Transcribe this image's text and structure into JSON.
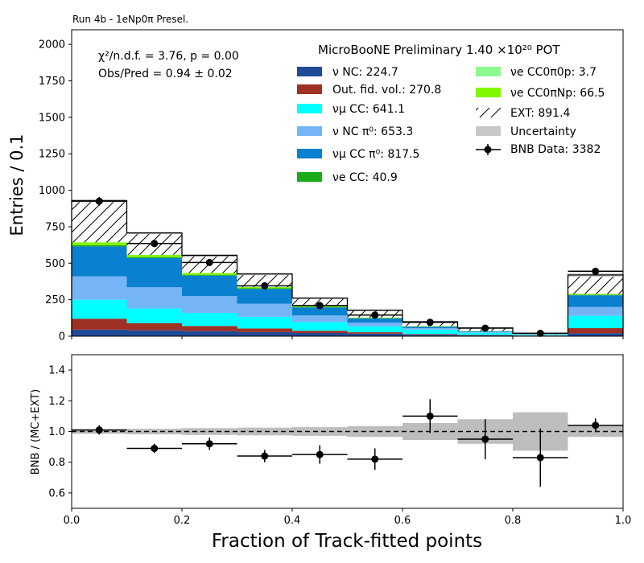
{
  "chart_data": [
    {
      "type": "bar",
      "run_label": "Run 4b - 1eNp0π Presel.",
      "header": "MicroBooNE Preliminary 1.40 ×10²⁰ POT",
      "stats": [
        "χ²/n.d.f. = 3.76, p = 0.00",
        "Obs/Pred = 0.94 ± 0.02"
      ],
      "xlabel": "Fraction of Track-fitted points",
      "ylabel": "Entries / 0.1",
      "xlim": [
        0,
        1
      ],
      "ylim": [
        0,
        2100
      ],
      "y_ticks": [
        "0",
        "250",
        "500",
        "750",
        "1000",
        "1250",
        "1500",
        "1750",
        "2000"
      ],
      "x_bin_edges": [
        0,
        0.1,
        0.2,
        0.3,
        0.4,
        0.5,
        0.6,
        0.7,
        0.8,
        0.9,
        1.0
      ],
      "stacked": true,
      "series": [
        {
          "name": "ν NC: 224.7",
          "color": "#1f4a96",
          "hatch": false,
          "values": [
            45,
            40,
            35,
            28,
            22,
            17,
            10,
            6,
            3,
            20
          ]
        },
        {
          "name": "Out. fid. vol.: 270.8",
          "color": "#9e3024",
          "hatch": false,
          "values": [
            75,
            50,
            35,
            25,
            15,
            10,
            5,
            3,
            2,
            35
          ]
        },
        {
          "name": "νμ CC: 641.1",
          "color": "#00ffff",
          "hatch": false,
          "values": [
            130,
            100,
            90,
            80,
            60,
            40,
            30,
            15,
            5,
            85
          ]
        },
        {
          "name": "ν NC π⁰: 653.3",
          "color": "#76b5f5",
          "hatch": false,
          "values": [
            160,
            145,
            115,
            90,
            45,
            25,
            10,
            5,
            2,
            60
          ]
        },
        {
          "name": "νμ CC π⁰: 817.5",
          "color": "#0a80d1",
          "hatch": false,
          "values": [
            205,
            200,
            140,
            100,
            55,
            30,
            10,
            5,
            2,
            80
          ]
        },
        {
          "name": "νe CC: 40.9",
          "color": "#1aab1a",
          "hatch": false,
          "values": [
            8,
            7,
            6,
            5,
            4,
            3,
            2,
            1,
            0.5,
            4
          ]
        },
        {
          "name": "νe CC0π0p: 3.7",
          "color": "#90f890",
          "hatch": false,
          "values": [
            0.5,
            0.5,
            0.5,
            0.3,
            0.3,
            0.2,
            0.2,
            0.2,
            0.1,
            0.5
          ]
        },
        {
          "name": "νe CC0πNp: 66.5",
          "color": "#7ffa00",
          "hatch": false,
          "values": [
            20,
            15,
            12,
            8,
            5,
            3,
            2,
            1,
            0.5,
            5
          ]
        },
        {
          "name": "EXT: 891.4",
          "color": "#ffffff",
          "hatch": true,
          "values": [
            285,
            150,
            120,
            90,
            55,
            50,
            30,
            20,
            5,
            130
          ]
        }
      ],
      "uncertainty": {
        "name": "Uncertainty",
        "color": "#c8c8c8",
        "values": [
          10,
          8,
          8,
          8,
          6,
          5,
          4,
          3,
          2,
          12
        ]
      },
      "data": {
        "name": "BNB Data: 3382",
        "x": [
          0.05,
          0.15,
          0.25,
          0.35,
          0.45,
          0.55,
          0.65,
          0.75,
          0.85,
          0.95
        ],
        "y": [
          925,
          635,
          505,
          345,
          210,
          145,
          95,
          55,
          20,
          445
        ],
        "yerr": [
          30,
          25,
          22,
          19,
          14,
          12,
          10,
          7,
          4,
          21
        ]
      }
    },
    {
      "type": "scatter",
      "ylabel": "BNB / (MC+EXT)",
      "xlabel": "Fraction of Track-fitted points",
      "xlim": [
        0,
        1
      ],
      "ylim": [
        0.5,
        1.5
      ],
      "x_ticks": [
        "0.0",
        "0.2",
        "0.4",
        "0.6",
        "0.8",
        "1.0"
      ],
      "y_ticks": [
        "0.6",
        "0.8",
        "1.0",
        "1.2",
        "1.4"
      ],
      "reference_line": 1.0,
      "uncertainty_band": {
        "lo": [
          0.985,
          0.982,
          0.978,
          0.975,
          0.972,
          0.965,
          0.945,
          0.92,
          0.875,
          0.965
        ],
        "hi": [
          1.015,
          1.018,
          1.022,
          1.025,
          1.028,
          1.035,
          1.055,
          1.08,
          1.125,
          1.035
        ]
      },
      "ratio": {
        "x": [
          0.05,
          0.15,
          0.25,
          0.35,
          0.45,
          0.55,
          0.65,
          0.75,
          0.85,
          0.95
        ],
        "y": [
          1.01,
          0.89,
          0.92,
          0.84,
          0.85,
          0.82,
          1.1,
          0.95,
          0.83,
          1.04
        ],
        "yerr": [
          0.03,
          0.03,
          0.04,
          0.04,
          0.06,
          0.07,
          0.11,
          0.13,
          0.19,
          0.045
        ]
      }
    }
  ]
}
